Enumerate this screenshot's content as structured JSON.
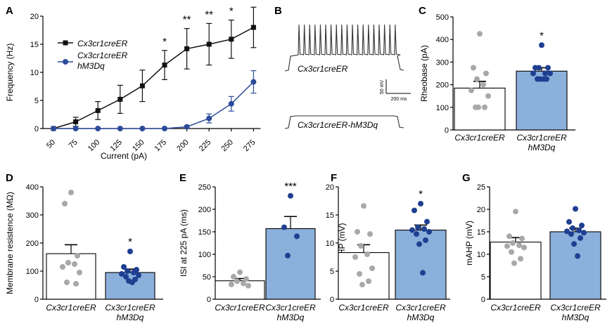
{
  "colors": {
    "ctrl": "#111111",
    "treat": "#2c4c9a",
    "bar_treat_fill": "#8cb0dc",
    "dot_ctrl": "#a8a8a8",
    "dot_treat": "#1f3f91"
  },
  "chart_data": [
    {
      "panel": "A",
      "type": "line",
      "xlabel": "Current (pA)",
      "ylabel": "Frequency (Hz)",
      "ylim": [
        0,
        20
      ],
      "yticks": [
        "0",
        "5",
        "10",
        "15",
        "20"
      ],
      "x": [
        "50",
        "75",
        "100",
        "125",
        "150",
        "175",
        "200",
        "225",
        "250",
        "275"
      ],
      "series": [
        {
          "name": "Cx3cr1creER",
          "values": [
            0,
            1.2,
            3.2,
            5.2,
            7.6,
            11.3,
            14.2,
            15.0,
            15.9,
            18.0
          ],
          "errors": [
            0,
            0.8,
            1.6,
            2.5,
            2.8,
            2.6,
            3.6,
            3.7,
            3.4,
            3.6
          ]
        },
        {
          "name_lines": [
            "Cx3cr1creER",
            "hM3Dq"
          ],
          "values": [
            0,
            0,
            0,
            0,
            0,
            0,
            0.3,
            1.8,
            4.4,
            8.3
          ],
          "errors": [
            0,
            0,
            0,
            0,
            0,
            0,
            0.2,
            0.8,
            1.3,
            2.0
          ]
        }
      ],
      "annotations": [
        {
          "x_index": 5,
          "text": "*"
        },
        {
          "x_index": 6,
          "text": "**"
        },
        {
          "x_index": 7,
          "text": "**"
        },
        {
          "x_index": 8,
          "text": "*"
        }
      ]
    },
    {
      "panel": "B",
      "type": "traces",
      "traces": [
        "Cx3cr1creER",
        "Cx3cr1creER-hM3Dq"
      ],
      "scale_v": "50 mV",
      "scale_t": "200 ms"
    },
    {
      "panel": "C",
      "type": "bar",
      "ylabel": "Rheobase (pA)",
      "ylim": [
        0,
        500
      ],
      "yticks": [
        "0",
        "100",
        "200",
        "300",
        "400",
        "500"
      ],
      "categories": [
        "Cx3cr1creER",
        "Cx3cr1creER\nhM3Dq"
      ],
      "values": [
        185,
        260
      ],
      "errors": [
        30,
        15
      ],
      "points": [
        [
          425,
          275,
          250,
          225,
          200,
          175,
          150,
          100,
          100,
          100
        ],
        [
          375,
          275,
          275,
          275,
          250,
          250,
          250,
          225,
          225,
          225,
          225
        ]
      ],
      "annotations": [
        {
          "category_index": 1,
          "text": "*"
        }
      ]
    },
    {
      "panel": "D",
      "type": "bar",
      "ylabel": "Membrane resistence (MΩ)",
      "ylim": [
        0,
        400
      ],
      "yticks": [
        "0",
        "100",
        "200",
        "300",
        "400"
      ],
      "categories": [
        "Cx3cr1creER",
        "Cx3cr1creER\nhM3Dq"
      ],
      "values": [
        162,
        95
      ],
      "errors": [
        32,
        12
      ],
      "points": [
        [
          380,
          340,
          155,
          130,
          125,
          115,
          95,
          60,
          55
        ],
        [
          170,
          115,
          105,
          100,
          95,
          90,
          85,
          80,
          70,
          65,
          60
        ]
      ],
      "annotations": [
        {
          "category_index": 1,
          "text": "*"
        }
      ]
    },
    {
      "panel": "E",
      "type": "bar",
      "ylabel": "ISI at 225 pA (ms)",
      "ylim": [
        0,
        250
      ],
      "yticks": [
        "0",
        "50",
        "100",
        "150",
        "200",
        "250"
      ],
      "categories": [
        "Cx3cr1creER",
        "Cx3cr1creER\nhM3Dq"
      ],
      "values": [
        41,
        157
      ],
      "errors": [
        5,
        27
      ],
      "points": [
        [
          60,
          50,
          45,
          40,
          35,
          33,
          30
        ],
        [
          230,
          160,
          140,
          97
        ]
      ],
      "annotations": [
        {
          "category_index": 1,
          "text": "***"
        }
      ]
    },
    {
      "panel": "F",
      "type": "bar",
      "ylabel": "fAHP (mV)",
      "ylim": [
        0,
        20
      ],
      "yticks": [
        "0",
        "5",
        "10",
        "15",
        "20"
      ],
      "categories": [
        "Cx3cr1creER",
        "Cx3cr1creER\nhM3Dq"
      ],
      "values": [
        8.3,
        12.3
      ],
      "errors": [
        1.4,
        0.9
      ],
      "points": [
        [
          16.6,
          12.0,
          11.6,
          9.5,
          8.0,
          7.5,
          5.5,
          4.5,
          3.2,
          2.6
        ],
        [
          17.0,
          15.8,
          13.8,
          12.8,
          12.5,
          12.3,
          12.0,
          11.6,
          10.5,
          9.8,
          4.7
        ]
      ],
      "annotations": [
        {
          "category_index": 1,
          "text": "*"
        }
      ]
    },
    {
      "panel": "G",
      "type": "bar",
      "ylabel": "mAHP (mV)",
      "ylim": [
        0,
        25
      ],
      "yticks": [
        "0",
        "5",
        "10",
        "15",
        "20",
        "25"
      ],
      "categories": [
        "Cx3cr1creER",
        "Cx3cr1creER\nhM3Dq"
      ],
      "values": [
        12.7,
        15.0
      ],
      "errors": [
        1.0,
        0.8
      ],
      "points": [
        [
          19.5,
          14.0,
          13.5,
          12.5,
          12.0,
          11.8,
          11.5,
          10.5,
          9.0,
          8.0
        ],
        [
          20.1,
          17.2,
          16.4,
          15.8,
          15.3,
          15.1,
          14.8,
          14.5,
          13.6,
          12.3,
          9.6
        ]
      ],
      "annotations": []
    }
  ]
}
